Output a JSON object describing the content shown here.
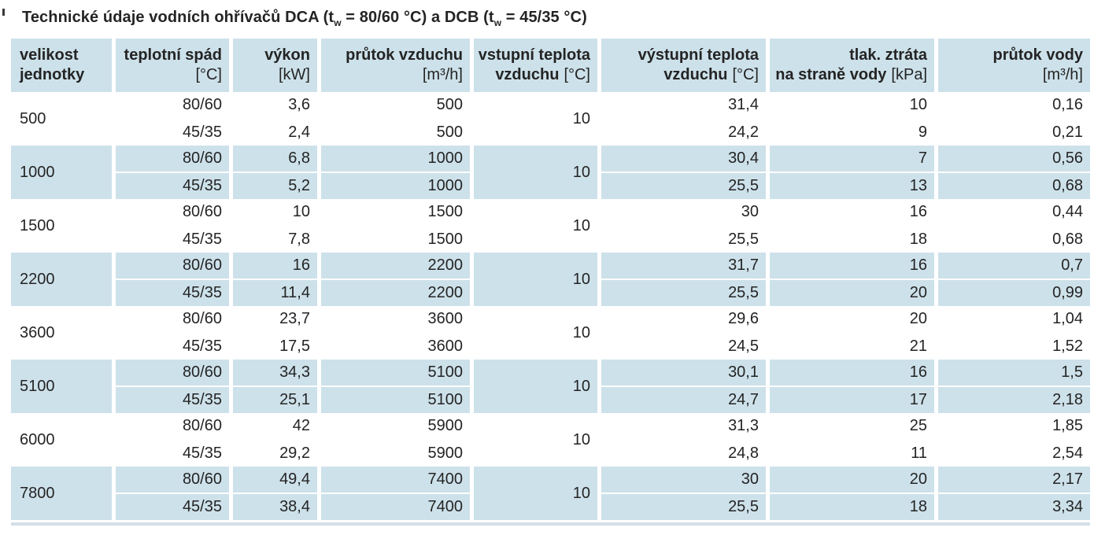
{
  "title": {
    "parts": [
      "Technické údaje vodních ohřívačů DCA (t",
      "w",
      " = 80/60 °C) a DCB (t",
      "w",
      " = 45/35 °C)"
    ]
  },
  "colors": {
    "highlight_blue": "#cde1ea",
    "bottom_rule": "#d3e0e6",
    "text": "#242424"
  },
  "table": {
    "columns": [
      {
        "line1": "velikost",
        "line2_text": "jednotky"
      },
      {
        "line1": "teplotní spád",
        "line2_unit": "[°C]"
      },
      {
        "line1": "výkon",
        "line2_unit": "[kW]"
      },
      {
        "line1": "průtok vzduchu",
        "line2_unit": "[m³/h]"
      },
      {
        "line1": "vstupní teplota",
        "line2_text": "vzduchu",
        "line2_unit": "[°C]"
      },
      {
        "line1": "výstupní teplota",
        "line2_text": "vzduchu",
        "line2_unit": "[°C]"
      },
      {
        "line1": "tlak. ztráta",
        "line2_text": "na straně vody",
        "line2_unit": "[kPa]"
      },
      {
        "line1": "průtok vody",
        "line2_unit": "[m³/h]"
      }
    ],
    "groups": [
      {
        "size": "500",
        "inlet_air_temp": "10",
        "rows": [
          {
            "gradient": "80/60",
            "power": "3,6",
            "airflow": "500",
            "outlet_temp": "31,4",
            "pressure_drop": "10",
            "water_flow": "0,16"
          },
          {
            "gradient": "45/35",
            "power": "2,4",
            "airflow": "500",
            "outlet_temp": "24,2",
            "pressure_drop": "9",
            "water_flow": "0,21"
          }
        ]
      },
      {
        "size": "1000",
        "inlet_air_temp": "10",
        "rows": [
          {
            "gradient": "80/60",
            "power": "6,8",
            "airflow": "1000",
            "outlet_temp": "30,4",
            "pressure_drop": "7",
            "water_flow": "0,56"
          },
          {
            "gradient": "45/35",
            "power": "5,2",
            "airflow": "1000",
            "outlet_temp": "25,5",
            "pressure_drop": "13",
            "water_flow": "0,68"
          }
        ]
      },
      {
        "size": "1500",
        "inlet_air_temp": "10",
        "rows": [
          {
            "gradient": "80/60",
            "power": "10",
            "airflow": "1500",
            "outlet_temp": "30",
            "pressure_drop": "16",
            "water_flow": "0,44"
          },
          {
            "gradient": "45/35",
            "power": "7,8",
            "airflow": "1500",
            "outlet_temp": "25,5",
            "pressure_drop": "18",
            "water_flow": "0,68"
          }
        ]
      },
      {
        "size": "2200",
        "inlet_air_temp": "10",
        "rows": [
          {
            "gradient": "80/60",
            "power": "16",
            "airflow": "2200",
            "outlet_temp": "31,7",
            "pressure_drop": "16",
            "water_flow": "0,7"
          },
          {
            "gradient": "45/35",
            "power": "11,4",
            "airflow": "2200",
            "outlet_temp": "25,5",
            "pressure_drop": "20",
            "water_flow": "0,99"
          }
        ]
      },
      {
        "size": "3600",
        "inlet_air_temp": "10",
        "rows": [
          {
            "gradient": "80/60",
            "power": "23,7",
            "airflow": "3600",
            "outlet_temp": "29,6",
            "pressure_drop": "20",
            "water_flow": "1,04"
          },
          {
            "gradient": "45/35",
            "power": "17,5",
            "airflow": "3600",
            "outlet_temp": "24,5",
            "pressure_drop": "21",
            "water_flow": "1,52"
          }
        ]
      },
      {
        "size": "5100",
        "inlet_air_temp": "10",
        "rows": [
          {
            "gradient": "80/60",
            "power": "34,3",
            "airflow": "5100",
            "outlet_temp": "30,1",
            "pressure_drop": "16",
            "water_flow": "1,5"
          },
          {
            "gradient": "45/35",
            "power": "25,1",
            "airflow": "5100",
            "outlet_temp": "24,7",
            "pressure_drop": "17",
            "water_flow": "2,18"
          }
        ]
      },
      {
        "size": "6000",
        "inlet_air_temp": "10",
        "rows": [
          {
            "gradient": "80/60",
            "power": "42",
            "airflow": "5900",
            "outlet_temp": "31,3",
            "pressure_drop": "25",
            "water_flow": "1,85"
          },
          {
            "gradient": "45/35",
            "power": "29,2",
            "airflow": "5900",
            "outlet_temp": "24,8",
            "pressure_drop": "11",
            "water_flow": "2,54"
          }
        ]
      },
      {
        "size": "7800",
        "inlet_air_temp": "10",
        "rows": [
          {
            "gradient": "80/60",
            "power": "49,4",
            "airflow": "7400",
            "outlet_temp": "30",
            "pressure_drop": "20",
            "water_flow": "2,17"
          },
          {
            "gradient": "45/35",
            "power": "38,4",
            "airflow": "7400",
            "outlet_temp": "25,5",
            "pressure_drop": "18",
            "water_flow": "3,34"
          }
        ]
      }
    ]
  }
}
